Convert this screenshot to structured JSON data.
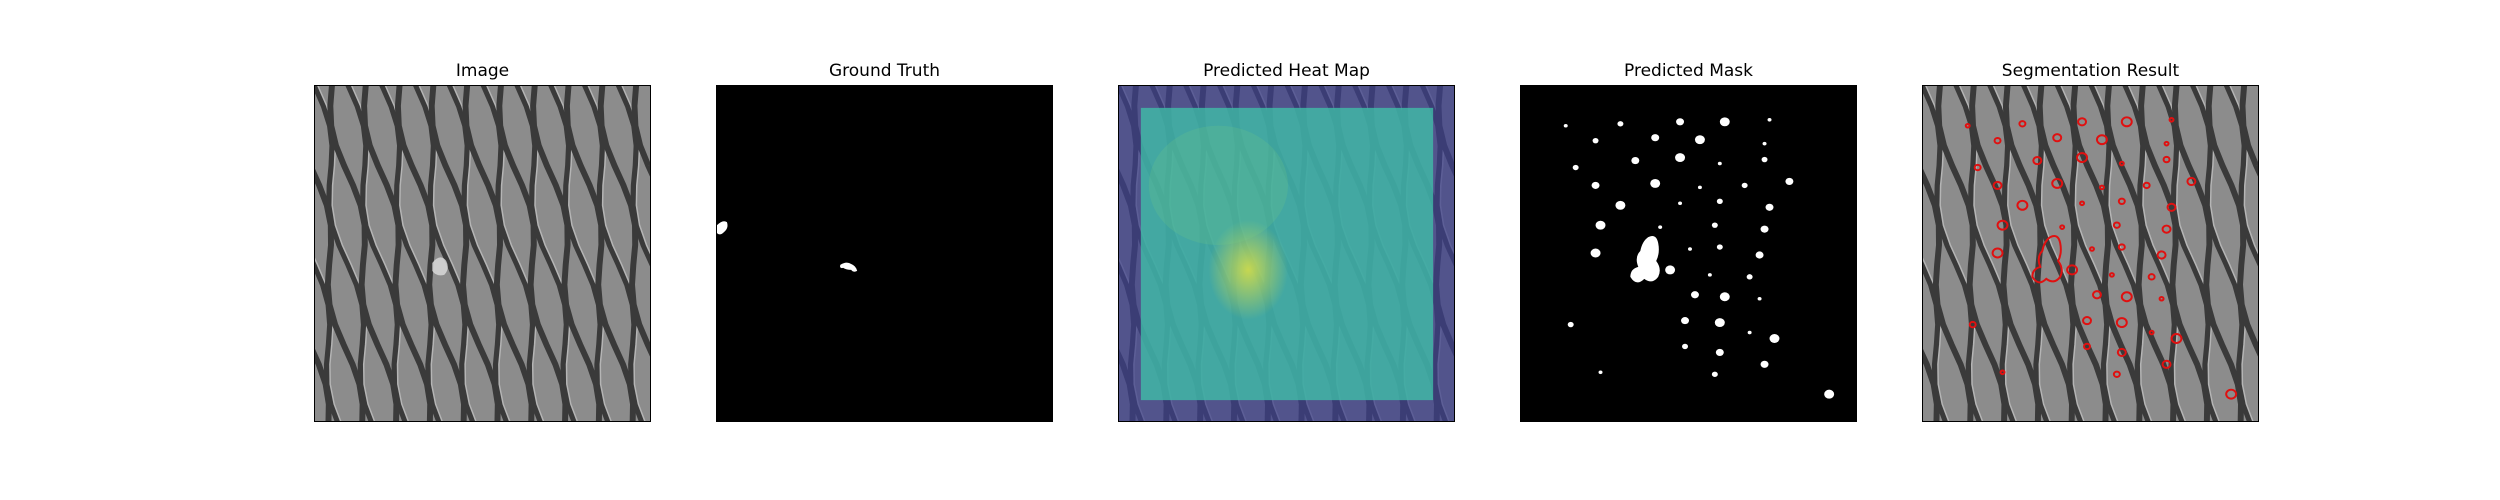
{
  "figure": {
    "panels": [
      {
        "key": "image",
        "title": "Image",
        "kind": "texture"
      },
      {
        "key": "ground_truth",
        "title": "Ground Truth",
        "kind": "mask"
      },
      {
        "key": "heat_map",
        "title": "Predicted Heat Map",
        "kind": "heatmap"
      },
      {
        "key": "predicted_mask",
        "title": "Predicted Mask",
        "kind": "mask"
      },
      {
        "key": "segmentation",
        "title": "Segmentation Result",
        "kind": "overlay"
      }
    ],
    "colors": {
      "background": "#ffffff",
      "texture_base": "#8c8c8c",
      "texture_line": "#3a3a3a",
      "texture_highlight": "#b5b5b5",
      "mask_bg": "#000000",
      "mask_fg": "#ffffff",
      "heat_low": "#3b3f8c",
      "heat_high": "#3fc0a8",
      "heat_hot": "#c9d94a",
      "contour": "#e01010"
    }
  }
}
